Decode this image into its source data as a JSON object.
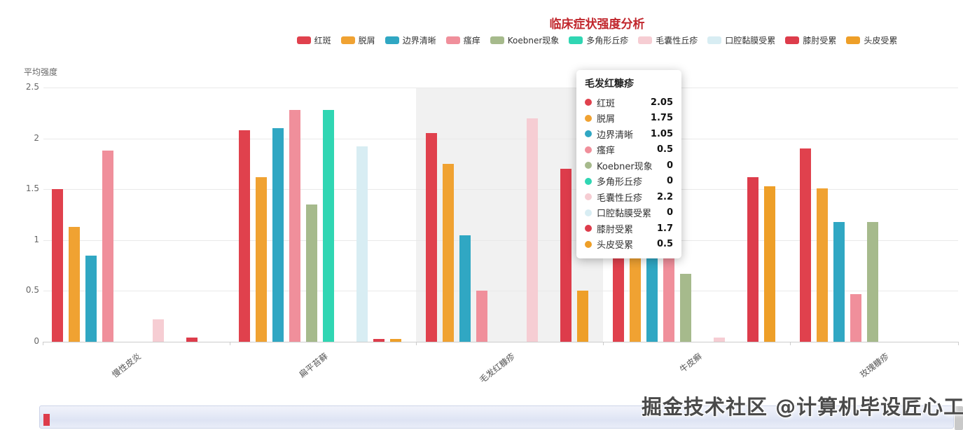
{
  "title": "临床症状强度分析",
  "y_axis_name": "平均强度",
  "watermark": "掘金技术社区 @计算机毕设匠心工作室",
  "chart_data": {
    "type": "bar",
    "title": "临床症状强度分析",
    "xlabel": "",
    "ylabel": "平均强度",
    "ylim": [
      0,
      2.5
    ],
    "y_ticks": [
      0,
      0.5,
      1,
      1.5,
      2,
      2.5
    ],
    "grid": true,
    "legend_position": "top",
    "highlighted_category": "毛发红糠疹",
    "categories": [
      "慢性皮炎",
      "扁平苔藓",
      "毛发红糠疹",
      "牛皮癣",
      "玫瑰糠疹"
    ],
    "series": [
      {
        "name": "红斑",
        "color": "#e0414d",
        "values": [
          1.5,
          2.08,
          2.05,
          2.2,
          1.9
        ]
      },
      {
        "name": "脱屑",
        "color": "#f0a232",
        "values": [
          1.13,
          1.62,
          1.75,
          2.25,
          1.51
        ]
      },
      {
        "name": "边界清晰",
        "color": "#30a7c3",
        "values": [
          0.85,
          2.1,
          1.05,
          2.15,
          1.18
        ]
      },
      {
        "name": "瘙痒",
        "color": "#f08f9b",
        "values": [
          1.88,
          2.28,
          0.5,
          1.2,
          0.47
        ]
      },
      {
        "name": "Koebner现象",
        "color": "#a6ba8c",
        "values": [
          0,
          1.35,
          0,
          0.67,
          1.18
        ]
      },
      {
        "name": "多角形丘疹",
        "color": "#30d6b3",
        "values": [
          0,
          2.28,
          0,
          0,
          0
        ]
      },
      {
        "name": "毛囊性丘疹",
        "color": "#f6cdd3",
        "values": [
          0.22,
          0,
          2.2,
          0.04,
          0
        ]
      },
      {
        "name": "口腔黏膜受累",
        "color": "#d8edf3",
        "values": [
          0,
          1.92,
          0,
          0,
          0
        ]
      },
      {
        "name": "膝肘受累",
        "color": "#dd3c4b",
        "values": [
          0.04,
          0.03,
          1.7,
          1.62,
          0
        ]
      },
      {
        "name": "头皮受累",
        "color": "#ee9f28",
        "values": [
          0,
          0.03,
          0.5,
          1.53,
          0
        ]
      }
    ]
  },
  "tooltip": {
    "title": "毛发红糠疹",
    "rows": [
      {
        "label": "红斑",
        "value": "2.05"
      },
      {
        "label": "脱屑",
        "value": "1.75"
      },
      {
        "label": "边界清晰",
        "value": "1.05"
      },
      {
        "label": "瘙痒",
        "value": "0.5"
      },
      {
        "label": "Koebner现象",
        "value": "0"
      },
      {
        "label": "多角形丘疹",
        "value": "0"
      },
      {
        "label": "毛囊性丘疹",
        "value": "2.2"
      },
      {
        "label": "口腔黏膜受累",
        "value": "0"
      },
      {
        "label": "膝肘受累",
        "value": "1.7"
      },
      {
        "label": "头皮受累",
        "value": "0.5"
      }
    ]
  }
}
